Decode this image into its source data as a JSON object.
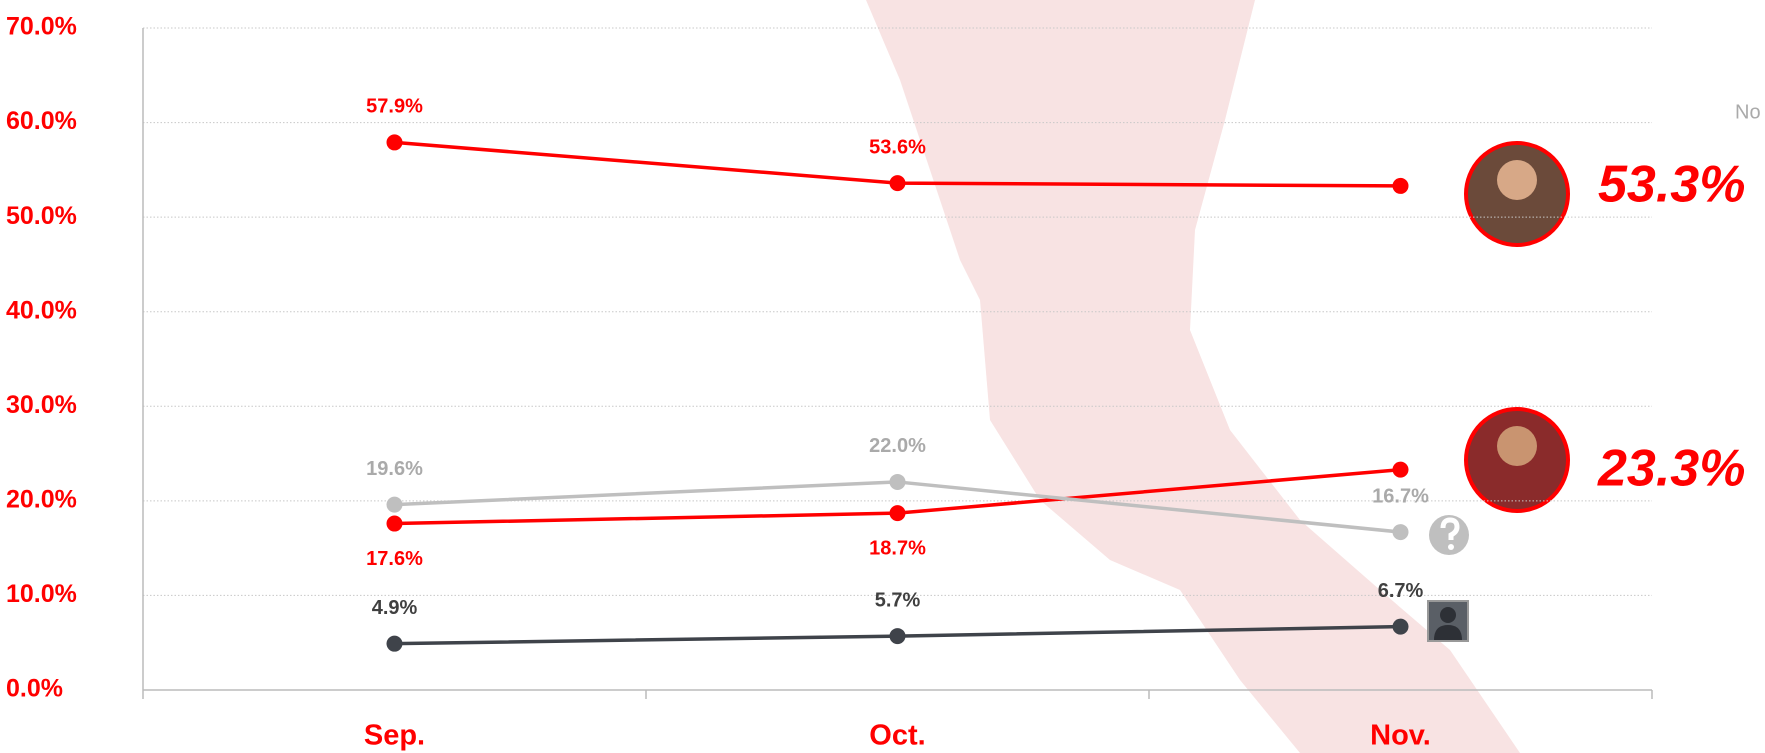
{
  "chart_data": {
    "type": "line",
    "categories": [
      "Sep.",
      "Oct.",
      "Nov."
    ],
    "series": [
      {
        "color": "#ff0000",
        "values": [
          57.9,
          53.6,
          53.3
        ],
        "value_labels": [
          "57.9%",
          "53.6%",
          "53.3%"
        ]
      },
      {
        "color": "#ff0000",
        "values": [
          17.6,
          18.7,
          23.3
        ],
        "value_labels": [
          "17.6%",
          "18.7%",
          "23.3%"
        ]
      },
      {
        "color": "#bfbfbf",
        "values": [
          19.6,
          22.0,
          16.7
        ],
        "value_labels": [
          "19.6%",
          "22.0%",
          "16.7%"
        ]
      },
      {
        "color": "#3f434a",
        "values": [
          4.9,
          5.7,
          6.7
        ],
        "value_labels": [
          "4.9%",
          "5.7%",
          "6.7%"
        ]
      }
    ],
    "ylim": [
      0,
      70
    ],
    "yticks": [
      {
        "value": 0,
        "label": "0.0%"
      },
      {
        "value": 10,
        "label": "10.0%"
      },
      {
        "value": 20,
        "label": "20.0%"
      },
      {
        "value": 30,
        "label": "30.0%"
      },
      {
        "value": 40,
        "label": "40.0%"
      },
      {
        "value": 50,
        "label": "50.0%"
      },
      {
        "value": 60,
        "label": "60.0%"
      },
      {
        "value": 70,
        "label": "70.0%"
      }
    ],
    "grid": true,
    "corner_note": "No"
  }
}
